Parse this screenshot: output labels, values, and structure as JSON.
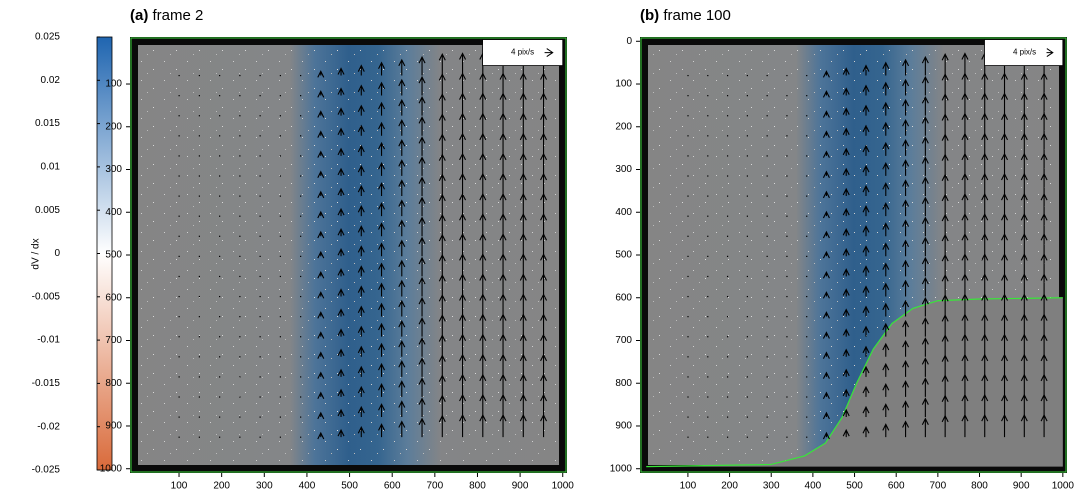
{
  "chart_data": [
    {
      "type": "field",
      "panel_label": "(a)",
      "title": "frame 2",
      "xlim": [
        -15,
        1010
      ],
      "ylim": [
        -10,
        1010
      ],
      "xticks": [
        100,
        200,
        300,
        400,
        500,
        600,
        700,
        800,
        900,
        1000
      ],
      "yticks": [
        100,
        200,
        300,
        400,
        500,
        600,
        700,
        800,
        900,
        1000
      ],
      "scale_label": "4 pix/s",
      "colorbar": {
        "label": "dV / dx",
        "lim": [
          -0.025,
          0.025
        ],
        "ticks": [
          0.025,
          0.02,
          0.015,
          0.01,
          0.005,
          0,
          -0.005,
          -0.01,
          -0.015,
          -0.02,
          -0.025
        ],
        "colors": [
          "#1f65b0",
          "#ffffff",
          "#d96a3a"
        ]
      }
    },
    {
      "type": "field",
      "panel_label": "(b)",
      "title": "frame 100",
      "xlim": [
        -15,
        1010
      ],
      "ylim": [
        -10,
        1010
      ],
      "xticks": [
        100,
        200,
        300,
        400,
        500,
        600,
        700,
        800,
        900,
        1000
      ],
      "yticks": [
        0,
        100,
        200,
        300,
        400,
        500,
        600,
        700,
        800,
        900,
        1000
      ],
      "scale_label": "4 pix/s"
    }
  ]
}
